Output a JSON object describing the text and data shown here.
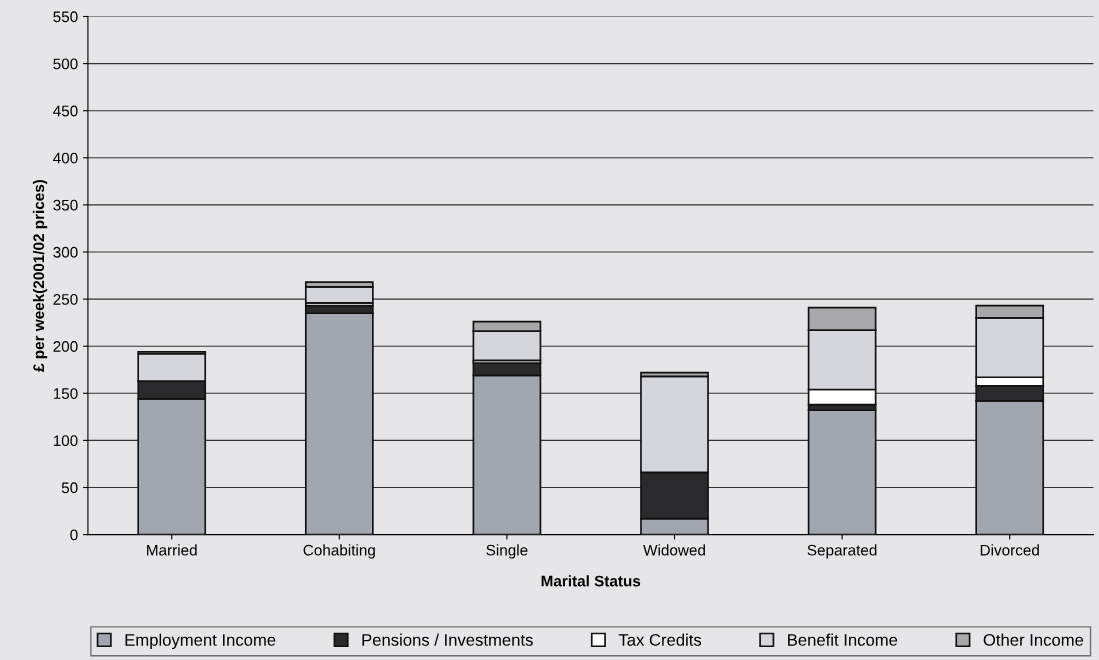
{
  "chart_data": {
    "type": "bar",
    "stacked": true,
    "xlabel": "Marital Status",
    "ylabel": "£ per week(2001/02 prices)",
    "categories": [
      "Married",
      "Cohabiting",
      "Single",
      "Widowed",
      "Separated",
      "Divorced"
    ],
    "series": [
      {
        "name": "Employment Income",
        "color": "#a2a6ae",
        "values": [
          144,
          235,
          169,
          17,
          132,
          142
        ]
      },
      {
        "name": "Pensions / Investments",
        "color": "#2a2a2c",
        "values": [
          19,
          8,
          13,
          49,
          6,
          16
        ]
      },
      {
        "name": "Tax Credits",
        "color": "#ffffff",
        "values": [
          null,
          3,
          3,
          0,
          16,
          9
        ]
      },
      {
        "name": "Benefit Income",
        "color": "#d4d6dc",
        "values": [
          29,
          17,
          31,
          102,
          63,
          63
        ]
      },
      {
        "name": "Other Income",
        "color": "#a8a8aa",
        "values": [
          2,
          5,
          10,
          4,
          24,
          13
        ]
      }
    ],
    "ylim": [
      0,
      550
    ],
    "yticks": [
      0,
      50,
      100,
      150,
      200,
      250,
      300,
      350,
      400,
      450,
      500,
      550
    ],
    "grid": "y",
    "legend": "bottom"
  }
}
